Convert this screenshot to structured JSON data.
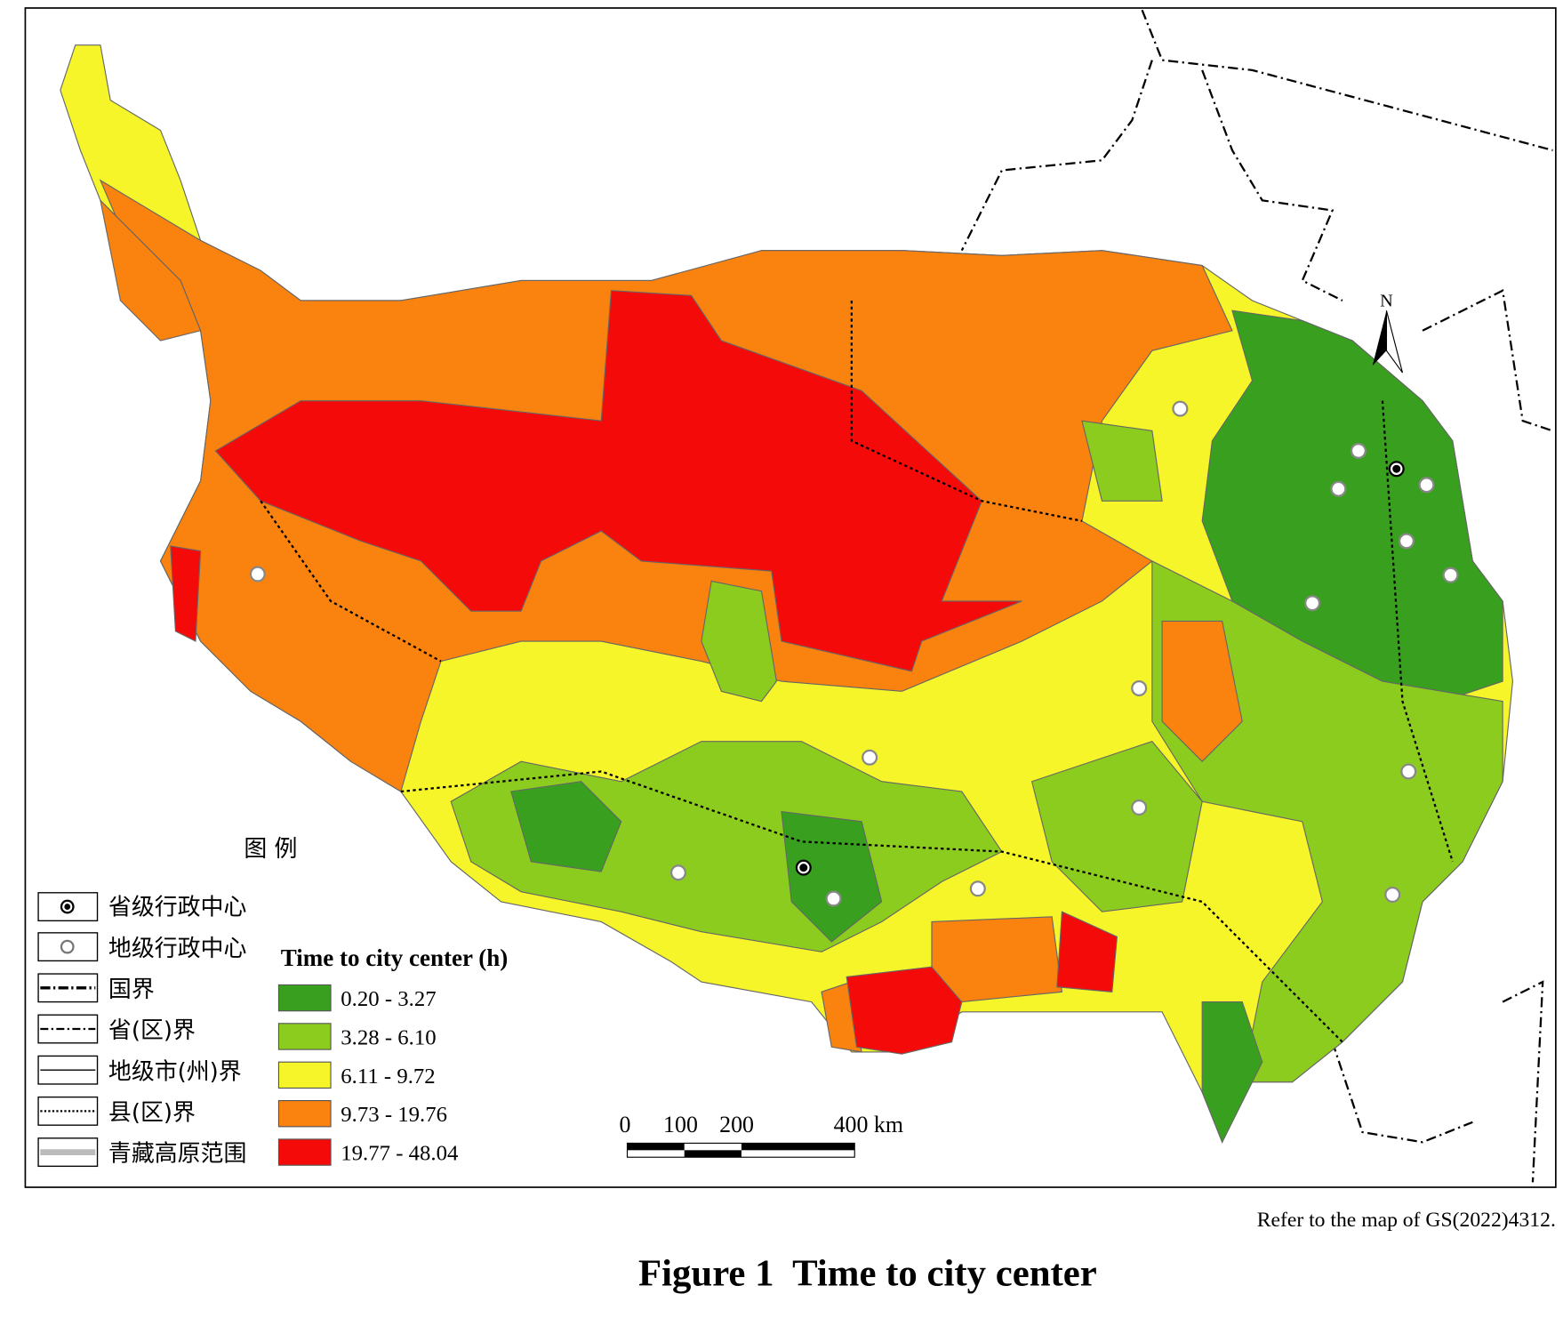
{
  "map": {
    "legend_title": "图 例",
    "symbols": [
      "省级行政中心",
      "地级行政中心",
      "国界",
      "省(区)界",
      "地级市(州)界",
      "县(区)界",
      "青藏高原范围"
    ],
    "class_title": "Time to city center (h)",
    "classes": [
      {
        "label": "0.20 - 3.27",
        "color": "#38a01e"
      },
      {
        "label": "3.28 - 6.10",
        "color": "#8ccc1e"
      },
      {
        "label": "6.11 - 9.72",
        "color": "#f5f52a"
      },
      {
        "label": "9.73 - 19.76",
        "color": "#fa820f"
      },
      {
        "label": "19.77 - 48.04",
        "color": "#f50a0a"
      }
    ],
    "scale_bar": [
      "0",
      "100",
      "200",
      "400 km"
    ],
    "north": "N",
    "source_note": "Refer to the map of GS(2022)4312.",
    "caption": "Figure 1  Time to city center"
  }
}
